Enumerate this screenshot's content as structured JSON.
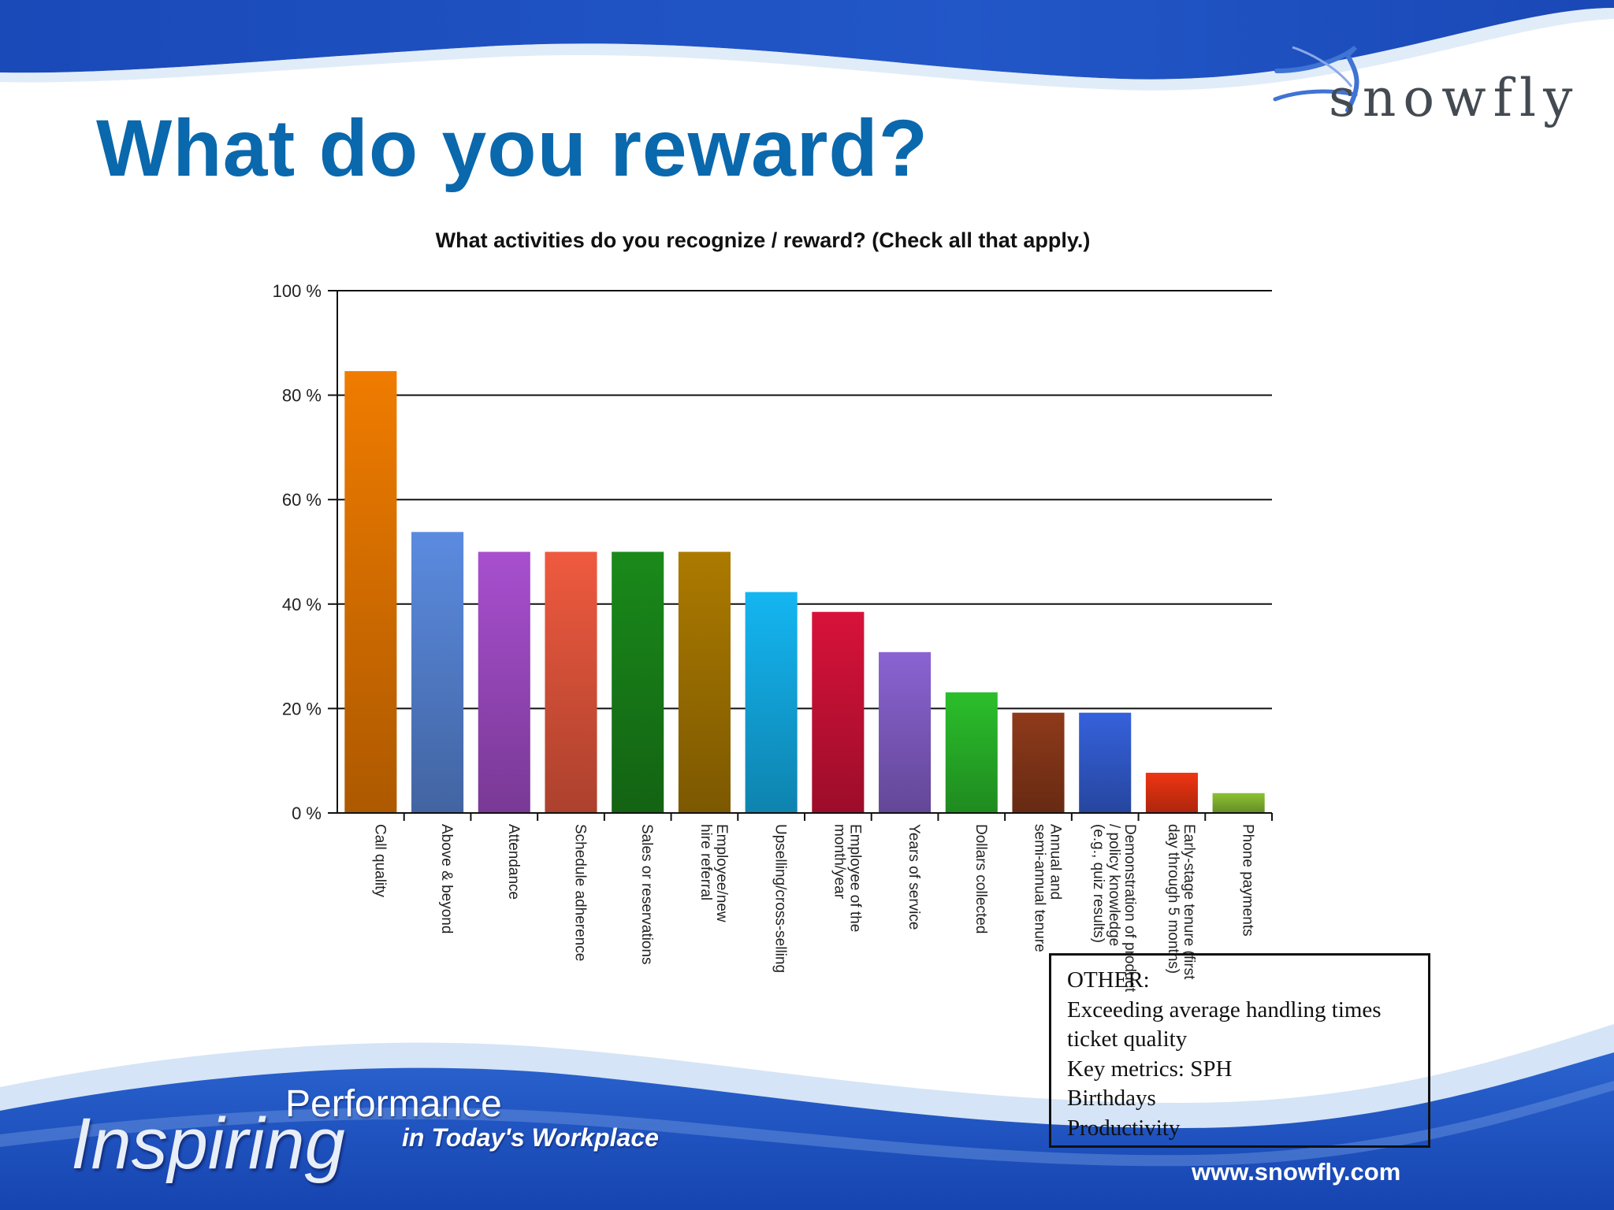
{
  "slide": {
    "title": "What do you reward?",
    "logo_text": "snowfly",
    "footer": {
      "tagline_main": "Inspiring",
      "tagline_top": "Performance",
      "tagline_sub": "in Today's Workplace",
      "url": "www.snowfly.com"
    },
    "colors": {
      "title": "#0a68ad",
      "banner_blue": "#1d4fbf",
      "banner_light": "#b9d2f0"
    }
  },
  "chart_data": {
    "type": "bar",
    "title": "What activities do you recognize / reward?  (Check all that apply.)",
    "xlabel": "",
    "ylabel": "",
    "ylim": [
      0,
      100
    ],
    "yticks": [
      "0 %",
      "20 %",
      "40 %",
      "60 %",
      "80 %",
      "100 %"
    ],
    "grid": true,
    "categories": [
      [
        "Call quality"
      ],
      [
        "Above & beyond"
      ],
      [
        "Attendance"
      ],
      [
        "Schedule adherence"
      ],
      [
        "Sales or reservations"
      ],
      [
        "Employee/new",
        "hire referral"
      ],
      [
        "Upselling/cross-selling"
      ],
      [
        "Employee of the",
        "month/year"
      ],
      [
        "Years of service"
      ],
      [
        "Dollars collected"
      ],
      [
        "Annual and",
        "semi-annual tenure"
      ],
      [
        "Demonstration of product",
        "/ policy knowledge",
        "(e.g., quiz results)"
      ],
      [
        "Early-stage tenure (first",
        "day through 5 months)"
      ],
      [
        "Phone payments"
      ]
    ],
    "values": [
      84.6,
      53.8,
      50.0,
      50.0,
      50.0,
      50.0,
      42.3,
      38.5,
      30.8,
      23.1,
      19.2,
      19.2,
      7.7,
      3.8
    ],
    "colors": [
      "#f07c00",
      "#5b8be0",
      "#a84fcf",
      "#ef5a3f",
      "#1a8a1a",
      "#ac7a00",
      "#14b6f2",
      "#d8123a",
      "#8a63d2",
      "#2bbf2b",
      "#8f3a1a",
      "#3561dc",
      "#ef3512",
      "#8cc233"
    ],
    "other_box": {
      "heading": "OTHER:",
      "items": [
        "Exceeding average handling times",
        "ticket quality",
        "Key metrics: SPH",
        "Birthdays",
        "Productivity"
      ]
    }
  }
}
